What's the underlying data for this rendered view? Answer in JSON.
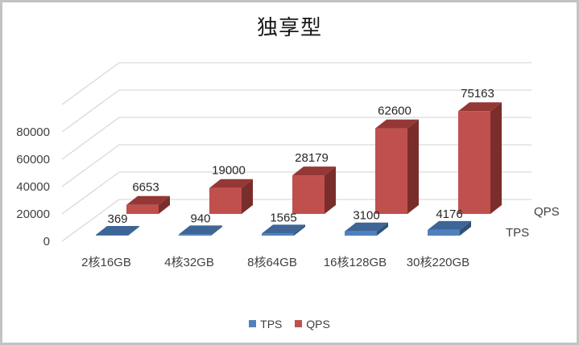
{
  "chart": {
    "title": "独享型",
    "legend": [
      {
        "name": "TPS",
        "color": "#4f81bd"
      },
      {
        "name": "QPS",
        "color": "#c0504d"
      }
    ],
    "depth_axis_labels": [
      "QPS",
      "TPS"
    ]
  },
  "chart_data": {
    "type": "bar",
    "subtype": "3d-column",
    "title": "独享型",
    "categories": [
      "2核16GB",
      "4核32GB",
      "8核64GB",
      "16核128GB",
      "30核220GB"
    ],
    "series": [
      {
        "name": "TPS",
        "values": [
          369,
          940,
          1565,
          3100,
          4176
        ],
        "color": "#4f81bd"
      },
      {
        "name": "QPS",
        "values": [
          6653,
          19000,
          28179,
          62600,
          75163
        ],
        "color": "#c0504d"
      }
    ],
    "xlabel": "",
    "ylabel": "",
    "yticks": [
      0,
      20000,
      40000,
      60000,
      80000
    ],
    "ylim": [
      0,
      80000
    ],
    "grid": true,
    "legend_position": "bottom",
    "data_labels": true
  }
}
